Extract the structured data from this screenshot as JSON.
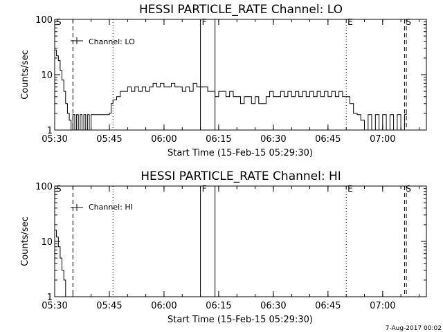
{
  "chart_data": [
    {
      "type": "line",
      "title": "HESSI PARTICLE_RATE Channel: LO",
      "xlabel": "Start Time (15-Feb-15 05:29:30)",
      "ylabel": "Counts/sec",
      "y_scale": "log",
      "ylim": [
        1,
        100
      ],
      "y_ticks": [
        "1",
        "10",
        "100"
      ],
      "xlim": [
        "05:30",
        "07:12"
      ],
      "x_ticks": [
        "05:30",
        "05:45",
        "06:00",
        "06:15",
        "06:30",
        "06:45",
        "07:00"
      ],
      "legend_label": "Channel: LO",
      "legend_position": "top-left",
      "markers": [
        {
          "label": "S",
          "time": "05:30",
          "style": "dashed"
        },
        {
          "label": "",
          "time": "05:35",
          "style": "dashed"
        },
        {
          "label": "",
          "time": "05:46",
          "style": "dotted"
        },
        {
          "label": "F",
          "time": "06:10",
          "style": "solid"
        },
        {
          "label": "",
          "time": "06:14",
          "style": "solid"
        },
        {
          "label": "E",
          "time": "06:50",
          "style": "dotted"
        },
        {
          "label": "S",
          "time": "07:06",
          "style": "dashed"
        },
        {
          "label": "",
          "time": "07:06.5",
          "style": "dashed"
        }
      ],
      "series": [
        {
          "x": [
            "05:30",
            "05:30.5",
            "05:31",
            "05:31.5",
            "05:32",
            "05:32.5",
            "05:33",
            "05:33.5",
            "05:34",
            "05:34.5",
            "05:35",
            "05:35.5",
            "05:36",
            "05:36.5",
            "05:37",
            "05:37.5",
            "05:38",
            "05:38.5",
            "05:39",
            "05:39.5",
            "05:40",
            "05:41",
            "05:42",
            "05:43",
            "05:44",
            "05:45",
            "05:45.5",
            "05:46",
            "05:47",
            "05:48",
            "05:49",
            "05:50",
            "05:51",
            "05:52",
            "05:53",
            "05:54",
            "05:55",
            "05:56",
            "05:57",
            "05:58",
            "05:59",
            "06:00",
            "06:01",
            "06:02",
            "06:03",
            "06:04",
            "06:05",
            "06:06",
            "06:07",
            "06:08",
            "06:09",
            "06:10",
            "06:11",
            "06:12",
            "06:13",
            "06:14",
            "06:15",
            "06:16",
            "06:17",
            "06:18",
            "06:19",
            "06:20",
            "06:21",
            "06:22",
            "06:23",
            "06:24",
            "06:25",
            "06:26",
            "06:27",
            "06:28",
            "06:29",
            "06:30",
            "06:31",
            "06:32",
            "06:33",
            "06:34",
            "06:35",
            "06:36",
            "06:37",
            "06:38",
            "06:39",
            "06:40",
            "06:41",
            "06:42",
            "06:43",
            "06:44",
            "06:45",
            "06:46",
            "06:47",
            "06:48",
            "06:49",
            "06:50",
            "06:51",
            "06:52",
            "06:53",
            "06:54",
            "06:55",
            "06:56",
            "06:57",
            "06:58",
            "06:59",
            "07:00",
            "07:01",
            "07:02",
            "07:03",
            "07:04",
            "07:05",
            "07:06",
            "07:06.5"
          ],
          "y": [
            28,
            22,
            18,
            12,
            8,
            5,
            3,
            2,
            1.5,
            1,
            1.9,
            1,
            1.9,
            1,
            1.9,
            1,
            1.9,
            1,
            1.9,
            1,
            1.9,
            1.9,
            1.9,
            1.9,
            1.9,
            2,
            3,
            3.5,
            4,
            5,
            5,
            6,
            5,
            6,
            5,
            6,
            5,
            6,
            7,
            6,
            7,
            6,
            6,
            7,
            6,
            6,
            5,
            6,
            5,
            7,
            6,
            6,
            6,
            5,
            5,
            4,
            5,
            5,
            4,
            5,
            4,
            4,
            3,
            4,
            4,
            3,
            4,
            3,
            3,
            4,
            5,
            4,
            4,
            5,
            4,
            5,
            4,
            5,
            4,
            5,
            4,
            5,
            4,
            5,
            4,
            5,
            4,
            5,
            4,
            5,
            4,
            4,
            3,
            2,
            1.9,
            1.5,
            1,
            1.9,
            1,
            1.9,
            1,
            1.9,
            1,
            1.9,
            1,
            1.9,
            1,
            1.9,
            2
          ]
        }
      ]
    },
    {
      "type": "line",
      "title": "HESSI PARTICLE_RATE Channel: HI",
      "xlabel": "Start Time (15-Feb-15 05:29:30)",
      "ylabel": "Counts/sec",
      "y_scale": "log",
      "ylim": [
        1,
        100
      ],
      "y_ticks": [
        "1",
        "10",
        "100"
      ],
      "xlim": [
        "05:30",
        "07:12"
      ],
      "x_ticks": [
        "05:30",
        "05:45",
        "06:00",
        "06:15",
        "06:30",
        "06:45",
        "07:00"
      ],
      "legend_label": "Channel: HI",
      "legend_position": "top-left",
      "markers": [
        {
          "label": "S",
          "time": "05:30",
          "style": "dashed"
        },
        {
          "label": "",
          "time": "05:35",
          "style": "dashed"
        },
        {
          "label": "",
          "time": "05:46",
          "style": "dotted"
        },
        {
          "label": "F",
          "time": "06:10",
          "style": "solid"
        },
        {
          "label": "",
          "time": "06:14",
          "style": "solid"
        },
        {
          "label": "E",
          "time": "06:50",
          "style": "dotted"
        },
        {
          "label": "S",
          "time": "07:06",
          "style": "dashed"
        },
        {
          "label": "",
          "time": "07:06.5",
          "style": "dashed"
        }
      ],
      "series": [
        {
          "x": [
            "05:30",
            "05:30.5",
            "05:31",
            "05:31.5",
            "05:32",
            "05:32.5",
            "05:33"
          ],
          "y": [
            16,
            12,
            8,
            5,
            3,
            2,
            1
          ]
        }
      ]
    }
  ],
  "footer": {
    "date_stamp": "7-Aug-2017 00:02"
  }
}
